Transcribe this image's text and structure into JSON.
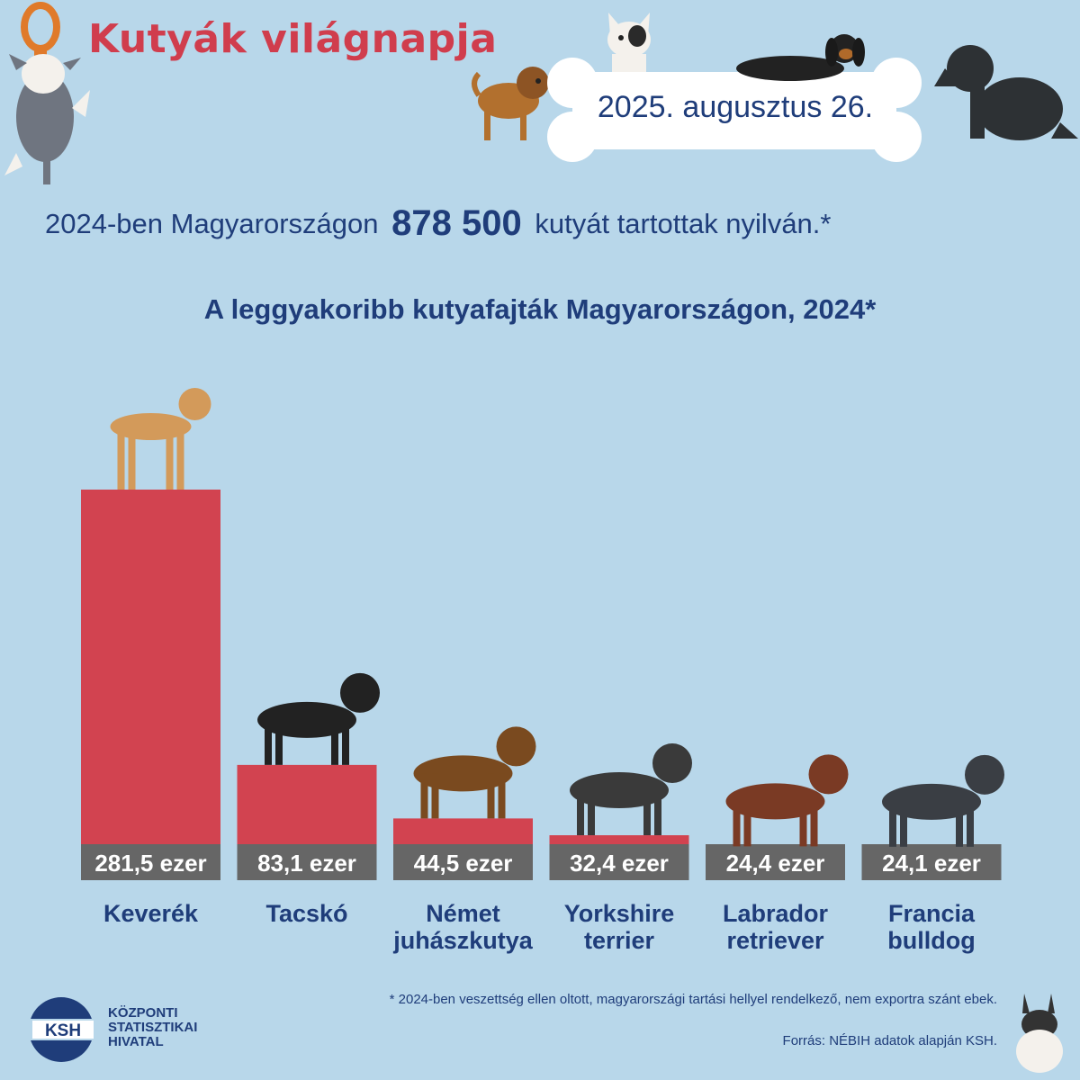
{
  "header": {
    "title": "Kutyák világnapja",
    "date": "2025. augusztus 26."
  },
  "summary": {
    "prefix": "2024-ben Magyarországon",
    "value": "878 500",
    "suffix": "kutyát tartottak nyilván.*"
  },
  "chart_data": {
    "type": "bar",
    "title": "A leggyakoribb kutyafajták Magyarországon, 2024*",
    "categories": [
      [
        "Keverék"
      ],
      [
        "Tacskó"
      ],
      [
        "Német",
        "juhászkutya"
      ],
      [
        "Yorkshire",
        "terrier"
      ],
      [
        "Labrador",
        "retriever"
      ],
      [
        "Francia",
        "bulldog"
      ]
    ],
    "values": [
      281.5,
      83.1,
      44.5,
      32.4,
      24.4,
      24.1
    ],
    "value_labels": [
      "281,5 ezer",
      "83,1 ezer",
      "44,5 ezer",
      "32,4 ezer",
      "24,4 ezer",
      "24,1 ezer"
    ],
    "unit": "ezer",
    "bar_color": "#d24350",
    "label_bg_color": "#666666",
    "grid": false
  },
  "footer": {
    "footnote": "* 2024-ben veszettség ellen oltott, magyarországi tartási hellyel rendelkező, nem exportra szánt ebek.",
    "source": "Forrás: NÉBIH adatok alapján KSH.",
    "logo_abbr": "KSH",
    "logo_lines": [
      "KÖZPONTI",
      "STATISZTIKAI",
      "HIVATAL"
    ]
  },
  "colors": {
    "background": "#b8d7ea",
    "title_red": "#d03d4d",
    "text_navy": "#1f3d7a"
  },
  "icons": [
    "dog-illustration-icon",
    "bone-icon"
  ]
}
